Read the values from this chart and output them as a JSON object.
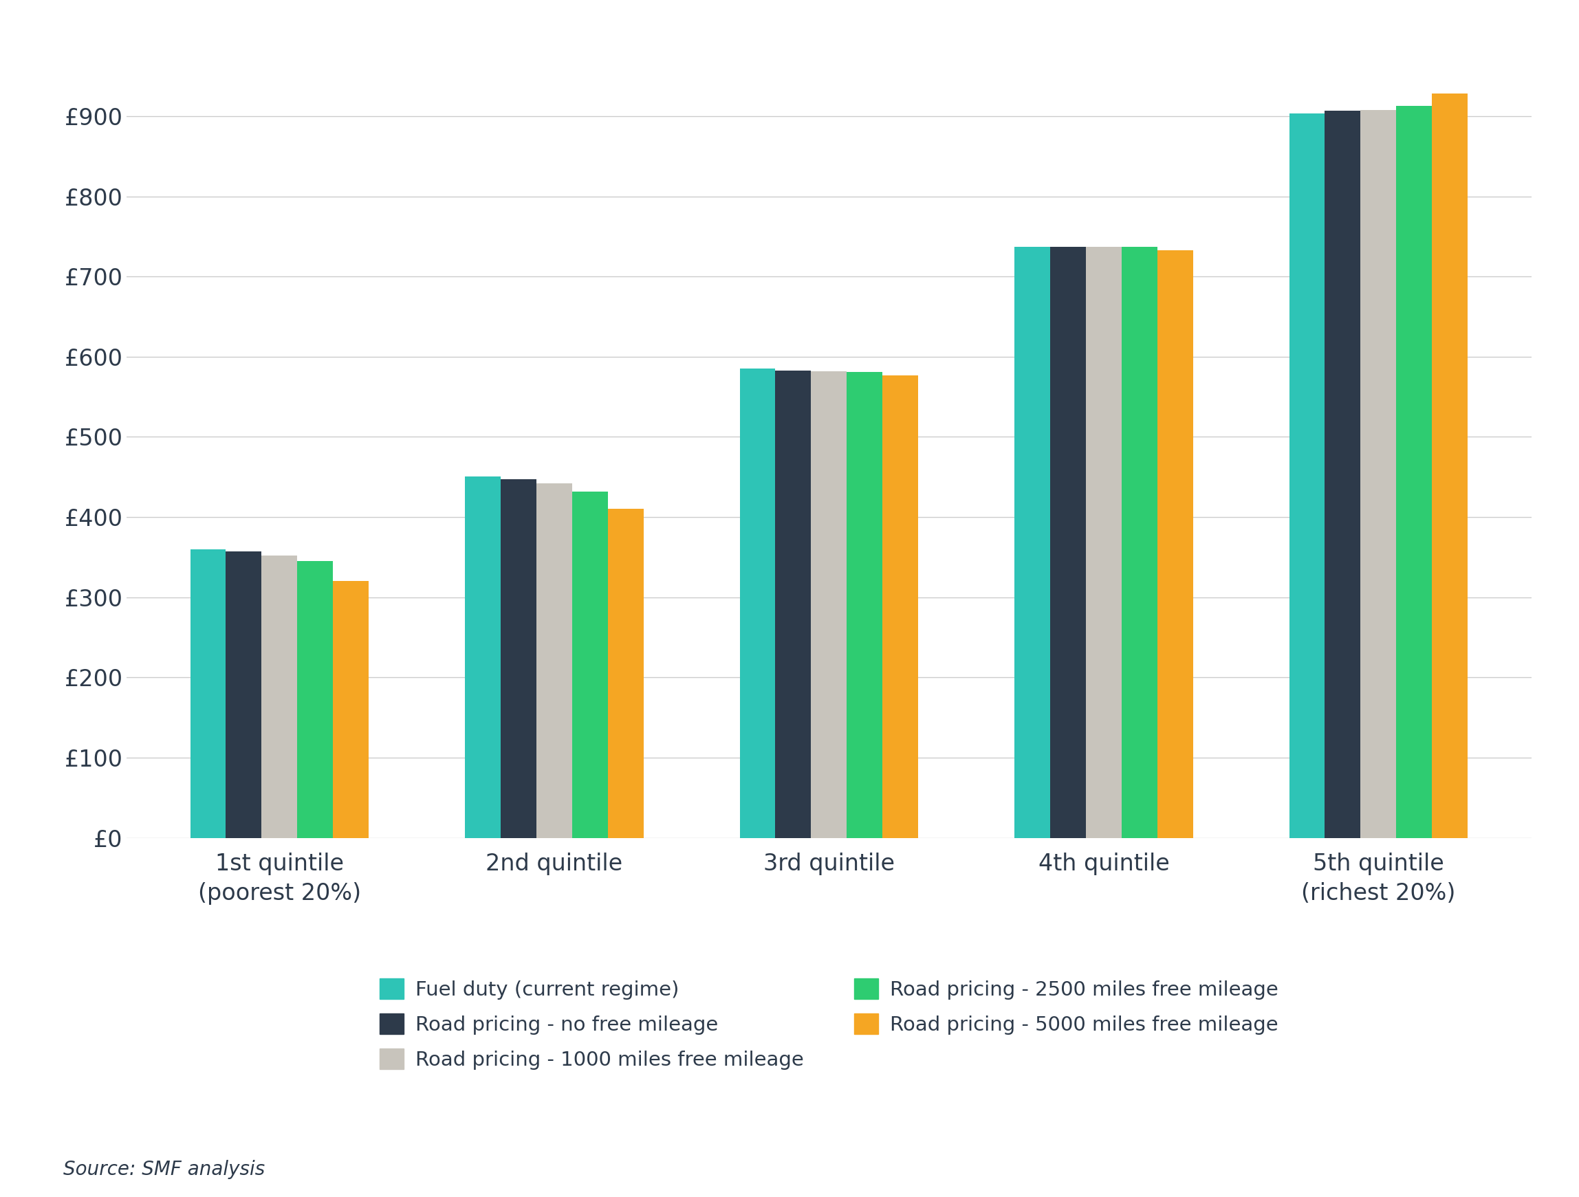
{
  "categories": [
    "1st quintile\n(poorest 20%)",
    "2nd quintile",
    "3rd quintile",
    "4th quintile",
    "5th quintile\n(richest 20%)"
  ],
  "series": [
    {
      "label": "Fuel duty (current regime)",
      "color": "#2ec4b6",
      "values": [
        360,
        451,
        585,
        737,
        903
      ]
    },
    {
      "label": "Road pricing - no free mileage",
      "color": "#2d3a4a",
      "values": [
        357,
        447,
        583,
        737,
        907
      ]
    },
    {
      "label": "Road pricing - 1000 miles free mileage",
      "color": "#c8c4bc",
      "values": [
        352,
        442,
        582,
        737,
        908
      ]
    },
    {
      "label": "Road pricing - 2500 miles free mileage",
      "color": "#2ecc71",
      "values": [
        345,
        432,
        581,
        737,
        913
      ]
    },
    {
      "label": "Road pricing - 5000 miles free mileage",
      "color": "#f5a623",
      "values": [
        320,
        410,
        577,
        733,
        928
      ]
    }
  ],
  "ylim": [
    0,
    1000
  ],
  "yticks": [
    0,
    100,
    200,
    300,
    400,
    500,
    600,
    700,
    800,
    900
  ],
  "ytick_labels": [
    "£0",
    "£100",
    "£200",
    "£300",
    "£400",
    "£500",
    "£600",
    "£700",
    "£800",
    "£900"
  ],
  "background_color": "#ffffff",
  "grid_color": "#cccccc",
  "bar_width": 0.13,
  "source_text": "Source: SMF analysis",
  "font_color": "#2d3a4a"
}
